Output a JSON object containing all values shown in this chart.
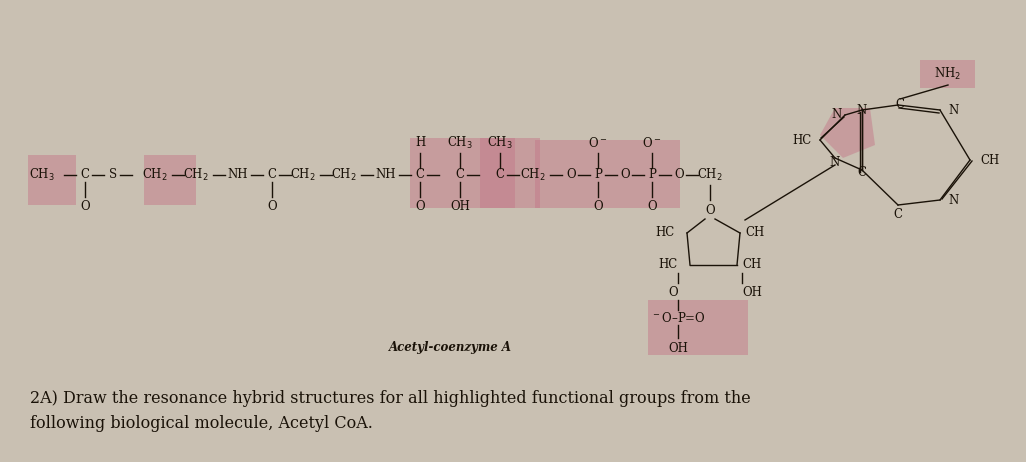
{
  "bg_color": "#c9c0b2",
  "highlight_color": "#c47a8a",
  "highlight_alpha": 0.5,
  "text_color": "#1a1208",
  "title": "Acetyl-coenzyme A",
  "question_line1": "2A) Draw the resonance hybrid structures for all highlighted functional groups from the",
  "question_line2": "following biological molecule, Acetyl CoA.",
  "font_size": 8.5,
  "title_font_size": 8.5,
  "question_font_size": 11.5
}
